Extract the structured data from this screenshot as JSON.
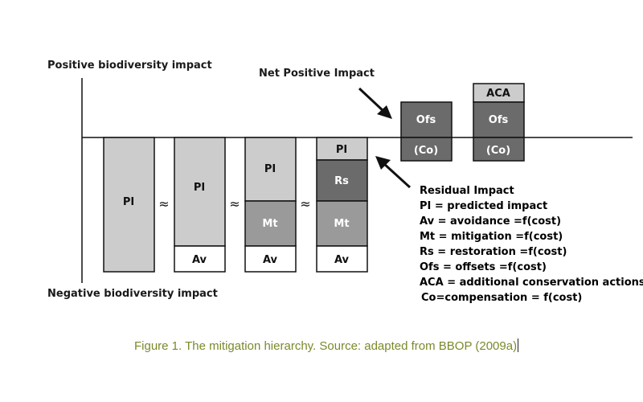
{
  "labels": {
    "positive": "Positive biodiversity impact",
    "negative": "Negative biodiversity impact",
    "net_positive": "Net Positive Impact"
  },
  "approx_symbol": "≈",
  "columns": [
    {
      "id": "col1",
      "segments": [
        {
          "label": "PI",
          "shade": "light"
        }
      ]
    },
    {
      "id": "col2",
      "segments": [
        {
          "label": "PI",
          "shade": "light"
        },
        {
          "label": "Av",
          "shade": "white"
        }
      ]
    },
    {
      "id": "col3",
      "segments": [
        {
          "label": "PI",
          "shade": "light"
        },
        {
          "label": "Mt",
          "shade": "medium"
        },
        {
          "label": "Av",
          "shade": "white"
        }
      ]
    },
    {
      "id": "col4",
      "segments": [
        {
          "label": "PI",
          "shade": "light"
        },
        {
          "label": "Rs",
          "shade": "dark"
        },
        {
          "label": "Mt",
          "shade": "medium"
        },
        {
          "label": "Av",
          "shade": "white"
        }
      ]
    }
  ],
  "offset_boxes": [
    {
      "id": "ofs1",
      "segments": [
        {
          "label": "Ofs",
          "shade": "dark"
        },
        {
          "label": "(Co)",
          "shade": "dark"
        }
      ]
    },
    {
      "id": "ofs2",
      "segments": [
        {
          "label": "ACA",
          "shade": "light"
        },
        {
          "label": "Ofs",
          "shade": "dark"
        },
        {
          "label": "(Co)",
          "shade": "dark"
        }
      ]
    }
  ],
  "legend": {
    "title": "Residual Impact",
    "lines": [
      "PI = predicted impact",
      "Av = avoidance  =f(cost)",
      "Mt = mitigation =f(cost)",
      "Rs = restoration =f(cost)",
      "Ofs = offsets =f(cost)",
      "ACA = additional conservation actions",
      "Co=compensation = f(cost)"
    ]
  },
  "caption": "Figure 1. The mitigation hierarchy. Source: adapted from BBOP (2009a)",
  "colors": {
    "light": "#cccccc",
    "medium": "#9a9a9a",
    "dark": "#6b6b6b",
    "white": "#ffffff",
    "stroke": "#111111",
    "caption": "#7a8a2a"
  }
}
